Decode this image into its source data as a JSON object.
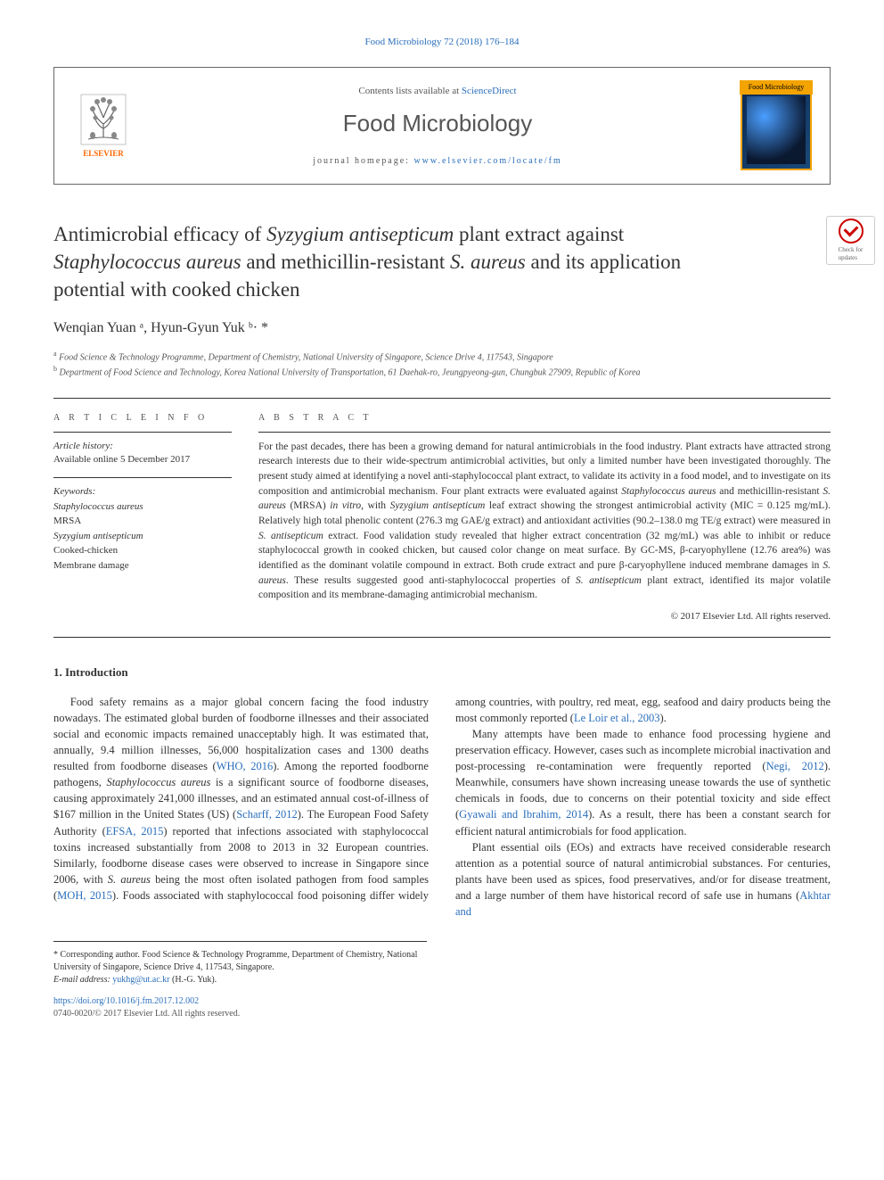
{
  "colors": {
    "link": "#2a6ebb",
    "publisher_orange": "#ff6600",
    "cover_border": "#f4a400",
    "check_red": "#c00",
    "text": "#333",
    "muted": "#555",
    "border": "#666",
    "divider": "#333"
  },
  "typography": {
    "body_family": "Georgia, 'Times New Roman', serif",
    "sans_family": "Helvetica, Arial, sans-serif",
    "journal_name_size": 26,
    "title_size": 23,
    "authors_size": 16,
    "abstract_size": 11.5,
    "body_size": 12.5
  },
  "top_link": "Food Microbiology 72 (2018) 176–184",
  "header": {
    "contents_prefix": "Contents lists available at ",
    "contents_link": "ScienceDirect",
    "journal_name": "Food Microbiology",
    "homepage_prefix": "journal homepage: ",
    "homepage_url": "www.elsevier.com/locate/fm",
    "publisher": "ELSEVIER",
    "cover_label": "Food Microbiology"
  },
  "check_badge": {
    "line1": "Check for",
    "line2": "updates"
  },
  "title": {
    "parts": [
      {
        "text": "Antimicrobial efficacy of ",
        "italic": false
      },
      {
        "text": "Syzygium antisepticum",
        "italic": true
      },
      {
        "text": " plant extract against ",
        "italic": false
      },
      {
        "text": "Staphylococcus aureus",
        "italic": true
      },
      {
        "text": " and methicillin-resistant ",
        "italic": false
      },
      {
        "text": "S. aureus",
        "italic": true
      },
      {
        "text": " and its application potential with cooked chicken",
        "italic": false
      }
    ]
  },
  "authors": "Wenqian Yuan ᵃ, Hyun-Gyun Yuk ᵇ· *",
  "affiliations": [
    {
      "sup": "a",
      "text": " Food Science & Technology Programme, Department of Chemistry, National University of Singapore, Science Drive 4, 117543, Singapore"
    },
    {
      "sup": "b",
      "text": " Department of Food Science and Technology, Korea National University of Transportation, 61 Daehak-ro, Jeungpyeong-gun, Chungbuk 27909, Republic of Korea"
    }
  ],
  "article_info": {
    "heading": "A R T I C L E  I N F O",
    "history_label": "Article history:",
    "history_text": "Available online 5 December 2017",
    "keywords_label": "Keywords:",
    "keywords": [
      "Staphylococcus aureus",
      "MRSA",
      "Syzygium antisepticum",
      "Cooked-chicken",
      "Membrane damage"
    ]
  },
  "abstract": {
    "heading": "A B S T R A C T",
    "text": "For the past decades, there has been a growing demand for natural antimicrobials in the food industry. Plant extracts have attracted strong research interests due to their wide-spectrum antimicrobial activities, but only a limited number have been investigated thoroughly. The present study aimed at identifying a novel anti-staphylococcal plant extract, to validate its activity in a food model, and to investigate on its composition and antimicrobial mechanism. Four plant extracts were evaluated against Staphylococcus aureus and methicillin-resistant S. aureus (MRSA) in vitro, with Syzygium antisepticum leaf extract showing the strongest antimicrobial activity (MIC = 0.125 mg/mL). Relatively high total phenolic content (276.3 mg GAE/g extract) and antioxidant activities (90.2–138.0 mg TE/g extract) were measured in S. antisepticum extract. Food validation study revealed that higher extract concentration (32 mg/mL) was able to inhibit or reduce staphylococcal growth in cooked chicken, but caused color change on meat surface. By GC-MS, β-caryophyllene (12.76 area%) was identified as the dominant volatile compound in extract. Both crude extract and pure β-caryophyllene induced membrane damages in S. aureus. These results suggested good anti-staphylococcal properties of S. antisepticum plant extract, identified its major volatile composition and its membrane-damaging antimicrobial mechanism.",
    "copyright": "© 2017 Elsevier Ltd. All rights reserved."
  },
  "section1": {
    "heading": "1. Introduction",
    "paragraphs": [
      "Food safety remains as a major global concern facing the food industry nowadays. The estimated global burden of foodborne illnesses and their associated social and economic impacts remained unacceptably high. It was estimated that, annually, 9.4 million illnesses, 56,000 hospitalization cases and 1300 deaths resulted from foodborne diseases (<a data-name='ref-link' data-interactable='true'>WHO, 2016</a>). Among the reported foodborne pathogens, <span class='italic'>Staphylococcus aureus</span> is a significant source of foodborne diseases, causing approximately 241,000 illnesses, and an estimated annual cost-of-illness of $167 million in the United States (US) (<a data-name='ref-link' data-interactable='true'>Scharff, 2012</a>). The European Food Safety Authority (<a data-name='ref-link' data-interactable='true'>EFSA, 2015</a>) reported that infections associated with staphylococcal toxins increased substantially from 2008 to 2013 in 32 European countries. Similarly, foodborne disease cases were observed to increase in Singapore since 2006, with <span class='italic'>S. aureus</span> being the most often isolated pathogen from food samples (<a data-name='ref-link' data-interactable='true'>MOH, 2015</a>). Foods associated with staphylococcal food poisoning differ widely among countries, with poultry, red meat, egg, seafood and dairy products being the most commonly reported (<a data-name='ref-link' data-interactable='true'>Le Loir et al., 2003</a>).",
      "Many attempts have been made to enhance food processing hygiene and preservation efficacy. However, cases such as incomplete microbial inactivation and post-processing re-contamination were frequently reported (<a data-name='ref-link' data-interactable='true'>Negi, 2012</a>). Meanwhile, consumers have shown increasing unease towards the use of synthetic chemicals in foods, due to concerns on their potential toxicity and side effect (<a data-name='ref-link' data-interactable='true'>Gyawali and Ibrahim, 2014</a>). As a result, there has been a constant search for efficient natural antimicrobials for food application.",
      "Plant essential oils (EOs) and extracts have received considerable research attention as a potential source of natural antimicrobial substances. For centuries, plants have been used as spices, food preservatives, and/or for disease treatment, and a large number of them have historical record of safe use in humans (<a data-name='ref-link' data-interactable='true'>Akhtar and</a>"
    ]
  },
  "footnote": {
    "corresponding": "* Corresponding author. Food Science & Technology Programme, Department of Chemistry, National University of Singapore, Science Drive 4, 117543, Singapore.",
    "email_label": "E-mail address: ",
    "email": "yukhg@ut.ac.kr",
    "email_suffix": " (H.-G. Yuk).",
    "doi": "https://doi.org/10.1016/j.fm.2017.12.002",
    "issn_copyright": "0740-0020/© 2017 Elsevier Ltd. All rights reserved."
  }
}
